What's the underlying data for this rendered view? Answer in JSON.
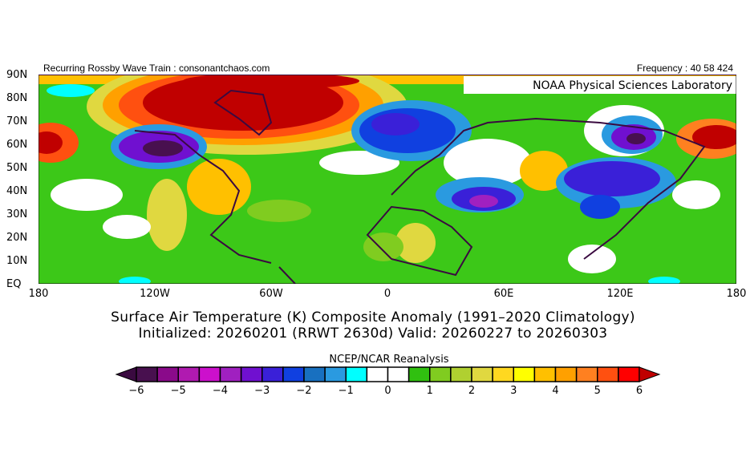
{
  "header": {
    "left_text": "Recurring Rossby Wave Train : consonantchaos.com",
    "right_text": "Frequency : 40 58 424",
    "lab_label": "NOAA Physical Sciences Laboratory"
  },
  "map": {
    "projection": "cylindrical equidistant",
    "lat_ticks": [
      "90N",
      "80N",
      "70N",
      "60N",
      "50N",
      "40N",
      "30N",
      "20N",
      "10N",
      "EQ"
    ],
    "lon_ticks": [
      "180",
      "120W",
      "60W",
      "0",
      "60E",
      "120E",
      "180"
    ]
  },
  "titles": {
    "line1": "Surface Air Temperature (K) Composite Anomaly (1991–2020 Climatology)",
    "line2": "Initialized: 20260201 (RRWT 2630d) Valid: 20260227 to 20260303"
  },
  "colorbar": {
    "title": "NCEP/NCAR Reanalysis",
    "labels": [
      "-6",
      "-5",
      "-4",
      "-3",
      "-2",
      "-1",
      "0",
      "1",
      "2",
      "3",
      "4",
      "5",
      "6"
    ],
    "min": -6,
    "max": 6,
    "step": 0.5,
    "under_color": "#3a0a40",
    "over_color": "#c00000",
    "colors": [
      "#48104f",
      "#8a0a8a",
      "#b01ab0",
      "#cc10cc",
      "#a020c0",
      "#7010d0",
      "#3a20d8",
      "#1040e0",
      "#1870c0",
      "#2a9ae0",
      "#00ffff",
      "#ffffff",
      "#ffffff",
      "#30c010",
      "#80cc20",
      "#b0d030",
      "#e0d840",
      "#ffd820",
      "#ffff00",
      "#ffc000",
      "#ffa000",
      "#ff8020",
      "#ff5010",
      "#ff0000"
    ]
  }
}
